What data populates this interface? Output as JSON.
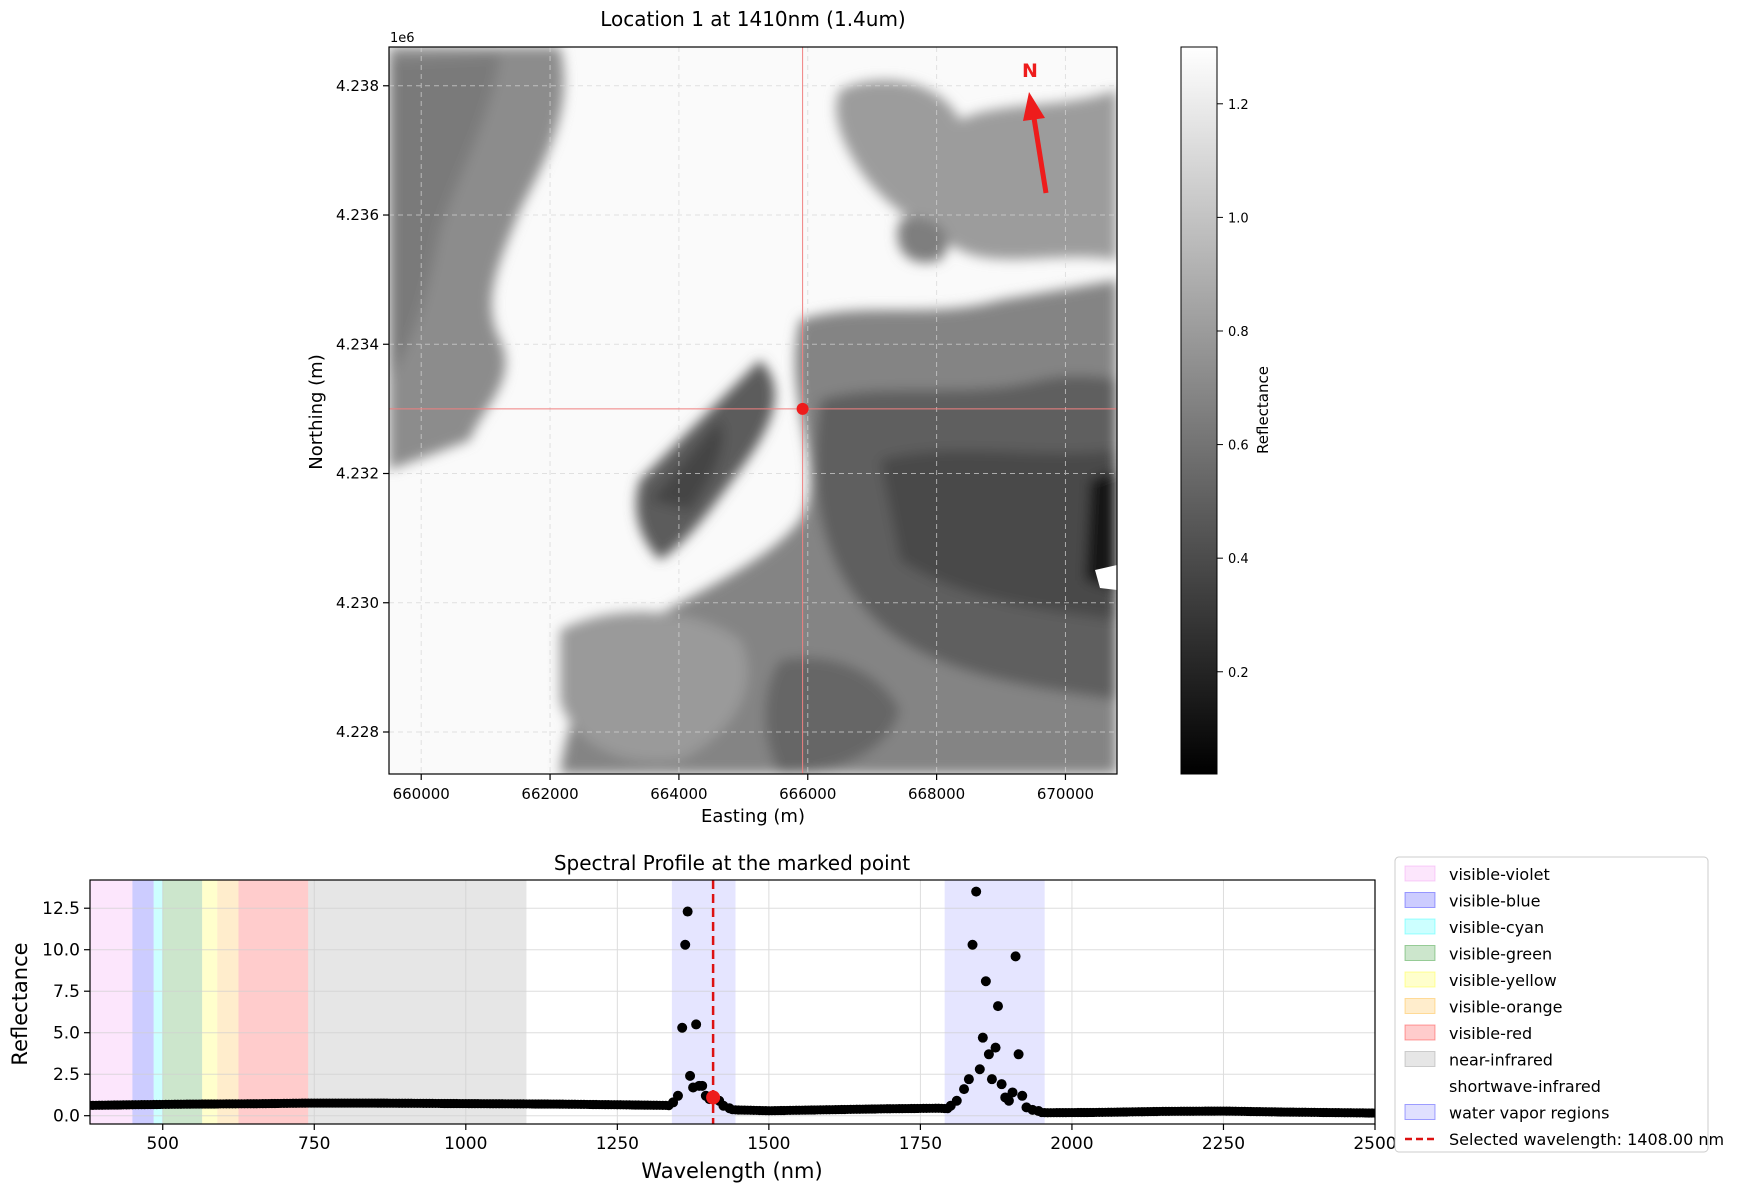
{
  "chart_data": [
    {
      "type": "heatmap",
      "title": "Location 1 at 1410nm (1.4um)",
      "xlabel": "Easting (m)",
      "ylabel": "Northing (m)",
      "xlim": [
        659500,
        670800
      ],
      "ylim": [
        4227350,
        4238600
      ],
      "x_ticks": [
        660000,
        662000,
        664000,
        666000,
        668000,
        670000
      ],
      "x_tick_labels": [
        "660000",
        "662000",
        "664000",
        "666000",
        "668000",
        "670000"
      ],
      "y_ticks": [
        4228000,
        4230000,
        4232000,
        4234000,
        4236000,
        4238000
      ],
      "y_tick_labels": [
        "4.228",
        "4.230",
        "4.232",
        "4.234",
        "4.236",
        "4.238"
      ],
      "y_offset_label": "1e6",
      "grid": true,
      "marked_point": {
        "easting": 665920,
        "northing": 4233000
      },
      "north_arrow": {
        "label": "N",
        "color": "#ee1c1c"
      },
      "colorbar": {
        "label": "Reflectance",
        "range": [
          0.02,
          1.3
        ],
        "ticks": [
          0.2,
          0.4,
          0.6,
          0.8,
          1.0,
          1.2
        ],
        "tick_labels": [
          "0.2",
          "0.4",
          "0.6",
          "0.8",
          "1.0",
          "1.2"
        ]
      }
    },
    {
      "type": "scatter",
      "title": "Spectral Profile at the marked point",
      "xlabel": "Wavelength (nm)",
      "ylabel": "Reflectance",
      "xlim": [
        380,
        2500
      ],
      "ylim": [
        -0.5,
        14.2
      ],
      "x_ticks": [
        500,
        750,
        1000,
        1250,
        1500,
        1750,
        2000,
        2250,
        2500
      ],
      "x_tick_labels": [
        "500",
        "750",
        "1000",
        "1250",
        "1500",
        "1750",
        "2000",
        "2250",
        "2500"
      ],
      "y_ticks": [
        0.0,
        2.5,
        5.0,
        7.5,
        10.0,
        12.5
      ],
      "y_tick_labels": [
        "0.0",
        "2.5",
        "5.0",
        "7.5",
        "10.0",
        "12.5"
      ],
      "grid": true,
      "legend_position": "outside-right",
      "regions": [
        {
          "name": "visible-violet",
          "x0": 380,
          "x1": 450,
          "color": "#ee82ee",
          "alpha": 0.2
        },
        {
          "name": "visible-blue",
          "x0": 450,
          "x1": 485,
          "color": "#0000ff",
          "alpha": 0.2
        },
        {
          "name": "visible-cyan",
          "x0": 485,
          "x1": 500,
          "color": "#00ffff",
          "alpha": 0.2
        },
        {
          "name": "visible-green",
          "x0": 500,
          "x1": 565,
          "color": "#008000",
          "alpha": 0.2
        },
        {
          "name": "visible-yellow",
          "x0": 565,
          "x1": 590,
          "color": "#ffff00",
          "alpha": 0.2
        },
        {
          "name": "visible-orange",
          "x0": 590,
          "x1": 625,
          "color": "#ffa500",
          "alpha": 0.2
        },
        {
          "name": "visible-red",
          "x0": 625,
          "x1": 740,
          "color": "#ff0000",
          "alpha": 0.2
        },
        {
          "name": "near-infrared",
          "x0": 740,
          "x1": 1100,
          "color": "#808080",
          "alpha": 0.2
        },
        {
          "name": "shortwave-infrared",
          "x0": 1100,
          "x1": 2500,
          "color": "#ffffff",
          "alpha": 0.2
        },
        {
          "name": "water vapor regions",
          "x0": 1340,
          "x1": 1445,
          "color": "#0000ff",
          "alpha": 0.1
        },
        {
          "name": "water vapor regions",
          "x0": 1790,
          "x1": 1955,
          "color": "#0000ff",
          "alpha": 0.1
        }
      ],
      "selected_wavelength": {
        "value": 1408.0,
        "label": "Selected wavelength: 1408.00 nm",
        "color": "#dd1111"
      },
      "selected_point": {
        "x": 1408,
        "y": 1.1
      },
      "baseline": [
        [
          380,
          0.62
        ],
        [
          450,
          0.66
        ],
        [
          550,
          0.7
        ],
        [
          650,
          0.72
        ],
        [
          740,
          0.76
        ],
        [
          850,
          0.76
        ],
        [
          950,
          0.74
        ],
        [
          1050,
          0.72
        ],
        [
          1150,
          0.7
        ],
        [
          1250,
          0.66
        ],
        [
          1330,
          0.62
        ],
        [
          1445,
          0.35
        ],
        [
          1500,
          0.3
        ],
        [
          1600,
          0.36
        ],
        [
          1700,
          0.42
        ],
        [
          1780,
          0.45
        ],
        [
          1960,
          0.18
        ],
        [
          2050,
          0.2
        ],
        [
          2150,
          0.26
        ],
        [
          2250,
          0.28
        ],
        [
          2350,
          0.22
        ],
        [
          2500,
          0.16
        ]
      ],
      "peaks": [
        [
          1342,
          0.8
        ],
        [
          1350,
          1.2
        ],
        [
          1357,
          5.3
        ],
        [
          1362,
          10.3
        ],
        [
          1366,
          12.3
        ],
        [
          1370,
          2.4
        ],
        [
          1375,
          1.7
        ],
        [
          1380,
          5.5
        ],
        [
          1385,
          1.8
        ],
        [
          1390,
          1.8
        ],
        [
          1396,
          1.2
        ],
        [
          1402,
          1.0
        ],
        [
          1418,
          0.9
        ],
        [
          1425,
          0.6
        ],
        [
          1435,
          0.45
        ],
        [
          1800,
          0.6
        ],
        [
          1810,
          0.9
        ],
        [
          1822,
          1.6
        ],
        [
          1830,
          2.2
        ],
        [
          1836,
          10.3
        ],
        [
          1842,
          13.5
        ],
        [
          1848,
          2.8
        ],
        [
          1853,
          4.7
        ],
        [
          1858,
          8.1
        ],
        [
          1863,
          3.7
        ],
        [
          1868,
          2.2
        ],
        [
          1874,
          4.1
        ],
        [
          1878,
          6.6
        ],
        [
          1884,
          1.9
        ],
        [
          1890,
          1.1
        ],
        [
          1896,
          0.9
        ],
        [
          1902,
          1.4
        ],
        [
          1907,
          9.6
        ],
        [
          1912,
          3.7
        ],
        [
          1918,
          1.2
        ],
        [
          1925,
          0.5
        ],
        [
          1935,
          0.35
        ],
        [
          1945,
          0.28
        ]
      ]
    }
  ]
}
